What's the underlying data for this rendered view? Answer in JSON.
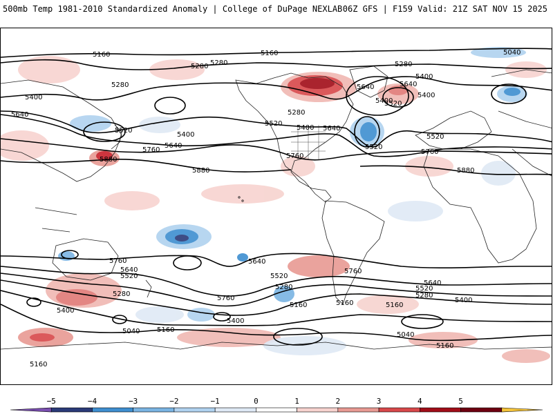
{
  "header": {
    "left_title": "500mb Temp 1981-2010 Standardized Anomaly | College of DuPage NEXLAB",
    "right_title": "06Z GFS | F159 Valid: 21Z SAT NOV 15 2025"
  },
  "map": {
    "contour_labels": [
      "5160",
      "5160",
      "5040",
      "5280",
      "5280",
      "5280",
      "5400",
      "5400",
      "5640",
      "5640",
      "5520",
      "5520",
      "5400",
      "5640",
      "5760",
      "5880",
      "5880",
      "5280",
      "5520",
      "5400",
      "5640",
      "5760",
      "5520",
      "5640",
      "5400",
      "5280",
      "5400",
      "5520",
      "5760",
      "5880",
      "5760",
      "5640",
      "5520",
      "5280",
      "5400",
      "5040",
      "5160",
      "5160",
      "5760",
      "5400",
      "5640",
      "5520",
      "5280",
      "5160",
      "5760",
      "5640",
      "5520",
      "5280",
      "5400",
      "5160",
      "5040",
      "5160",
      "5160"
    ]
  },
  "colorbar": {
    "labels": [
      "−5",
      "−4",
      "−3",
      "−2",
      "−1",
      "0",
      "1",
      "2",
      "3",
      "4",
      "5"
    ],
    "colors": [
      "#7a4fb0",
      "#2a3a78",
      "#3e8ed0",
      "#7ab4e3",
      "#b0d2ef",
      "#dfe9f5",
      "#ffffff",
      "#f7d3cf",
      "#e89a93",
      "#d8484a",
      "#a10d18",
      "#6e0010",
      "#f4c33a"
    ]
  }
}
